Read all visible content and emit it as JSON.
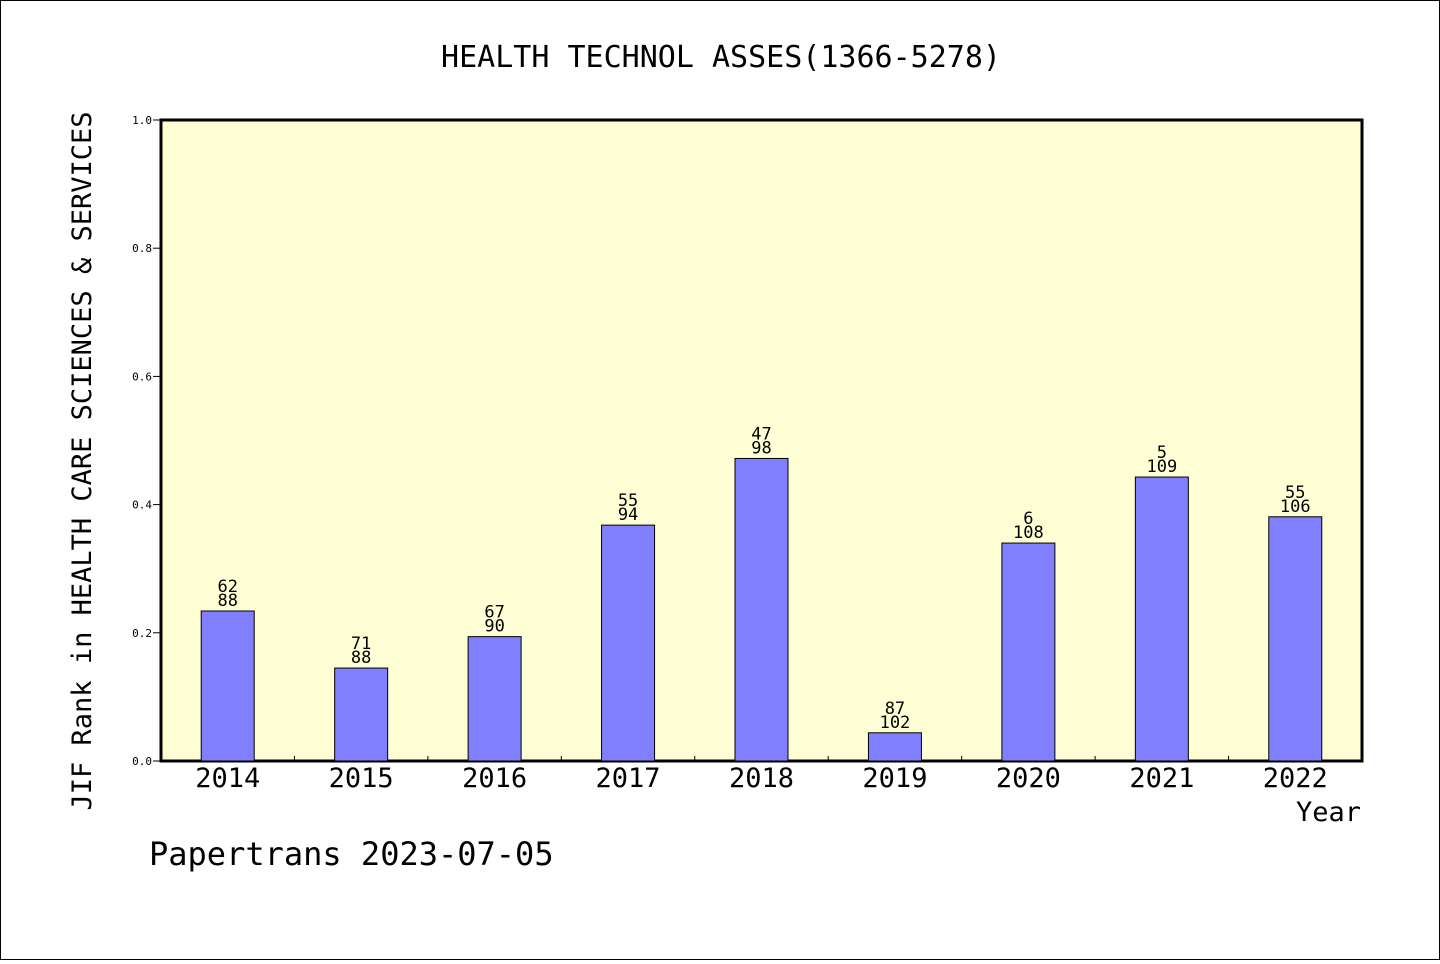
{
  "chart_data": {
    "type": "bar",
    "title": "HEALTH TECHNOL ASSES(1366-5278)",
    "xlabel": "Year",
    "ylabel": "JIF Rank in HEALTH CARE SCIENCES & SERVICES",
    "categories": [
      "2014",
      "2015",
      "2016",
      "2017",
      "2018",
      "2019",
      "2020",
      "2021",
      "2022"
    ],
    "values": [
      0.234,
      0.145,
      0.194,
      0.368,
      0.472,
      0.044,
      0.34,
      0.443,
      0.381
    ],
    "labels_top": [
      "62",
      "71",
      "67",
      "55",
      "47",
      "87",
      "6",
      "5",
      "55"
    ],
    "labels_bottom": [
      "88",
      "88",
      "90",
      "94",
      "98",
      "102",
      "108",
      "109",
      "106"
    ],
    "ylim": [
      0,
      1.0
    ],
    "yticks": [
      "0.0",
      "0.2",
      "0.4",
      "0.6",
      "0.8",
      "1.0"
    ],
    "grid": false,
    "colors": {
      "plot_bg": "#ffffd5",
      "bar": "#8080ff"
    }
  },
  "footer": {
    "watermark": "Papertrans 2023-07-05"
  }
}
